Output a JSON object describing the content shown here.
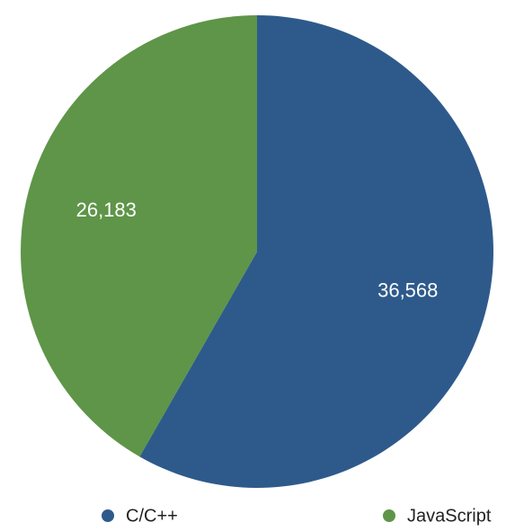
{
  "chart_data": {
    "type": "pie",
    "title": "",
    "legend_position": "bottom",
    "start_angle_deg": 0,
    "direction": "clockwise",
    "slices": [
      {
        "label": "C/C++",
        "value": 36568,
        "value_label": "36,568",
        "color": "#2e5a8b"
      },
      {
        "label": "JavaScript",
        "value": 26183,
        "value_label": "26,183",
        "color": "#5e9548"
      }
    ]
  }
}
